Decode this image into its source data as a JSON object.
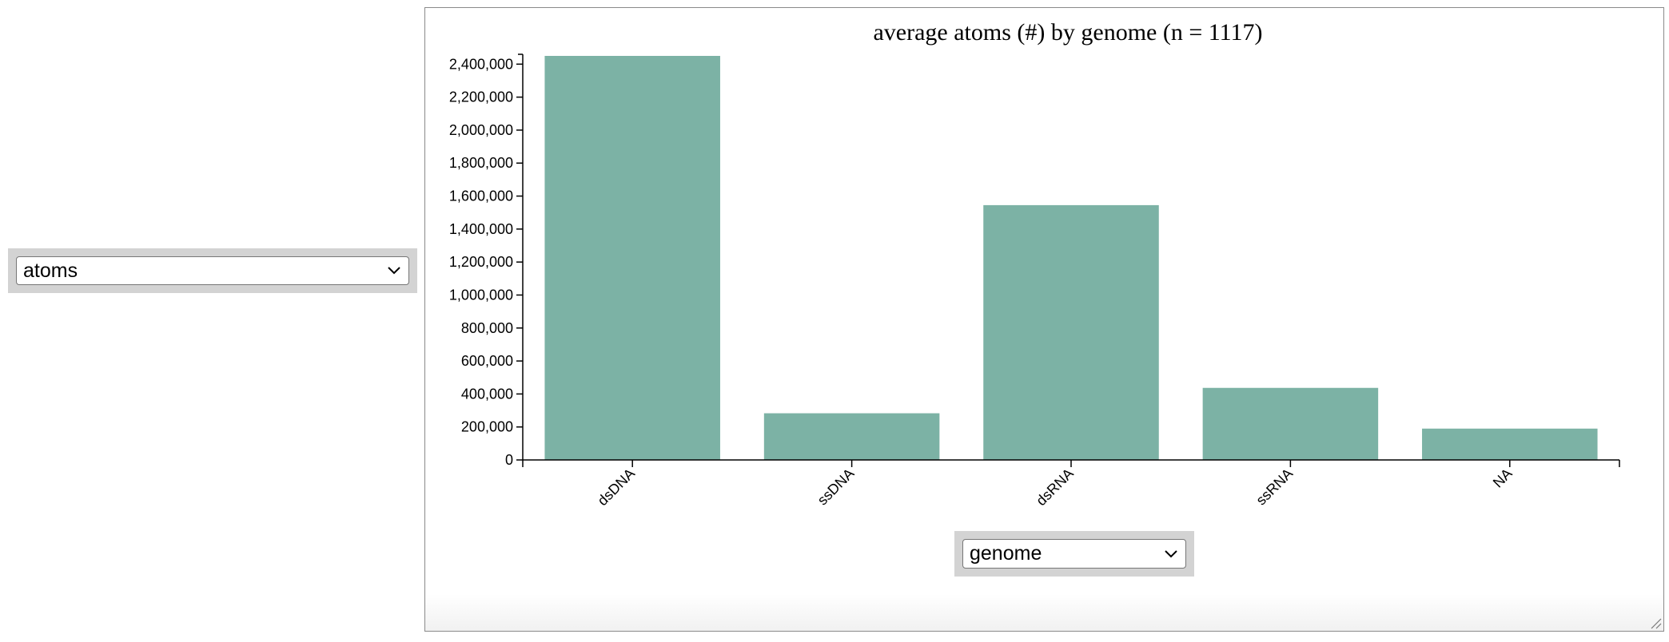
{
  "controls": {
    "y_select_value": "atoms",
    "x_select_value": "genome"
  },
  "colors": {
    "bar": "#7cb2a5",
    "axis": "#000000",
    "select_bg": "#d3d3d3"
  },
  "chart_data": {
    "type": "bar",
    "title": "average atoms (#) by genome (n = 1117)",
    "categories": [
      "dsDNA",
      "ssDNA",
      "dsRNA",
      "ssRNA",
      "NA"
    ],
    "values": [
      2450000,
      283000,
      1545000,
      437000,
      190000
    ],
    "ylim": [
      0,
      2450000
    ],
    "yticks": [
      0,
      200000,
      400000,
      600000,
      800000,
      1000000,
      1200000,
      1400000,
      1600000,
      1800000,
      2000000,
      2200000,
      2400000
    ],
    "ytick_labels": [
      "0",
      "200,000",
      "400,000",
      "600,000",
      "800,000",
      "1,000,000",
      "1,200,000",
      "1,400,000",
      "1,600,000",
      "1,800,000",
      "2,000,000",
      "2,200,000",
      "2,400,000"
    ],
    "grid": false
  }
}
